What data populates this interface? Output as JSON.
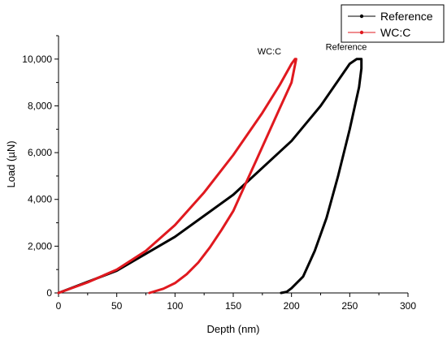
{
  "chart_data": {
    "type": "line",
    "xlabel": "Depth (nm)",
    "ylabel": "Load (µN)",
    "xlim": [
      0,
      300
    ],
    "ylim": [
      0,
      11000
    ],
    "xticks": [
      0,
      50,
      100,
      150,
      200,
      250,
      300
    ],
    "xtick_labels": [
      "0",
      "50",
      "100",
      "150",
      "200",
      "250",
      "300"
    ],
    "yticks": [
      0,
      2000,
      4000,
      6000,
      8000,
      10000
    ],
    "ytick_labels": [
      "0",
      "2,000",
      "4,000",
      "6,000",
      "8,000",
      "10,000"
    ],
    "grid": false,
    "legend_position": "top-right",
    "series": [
      {
        "name": "Reference",
        "color": "#000000",
        "x": [
          0,
          50,
          100,
          150,
          200,
          225,
          250,
          256,
          260,
          260,
          258,
          250,
          240,
          230,
          220,
          210,
          200,
          196,
          191
        ],
        "y": [
          0,
          950,
          2400,
          4200,
          6500,
          8000,
          9800,
          10000,
          10000,
          9600,
          8800,
          7000,
          5000,
          3200,
          1800,
          700,
          200,
          50,
          0
        ]
      },
      {
        "name": "WC:C",
        "color": "#e0191f",
        "x": [
          0,
          25,
          50,
          75,
          100,
          125,
          150,
          175,
          190,
          200,
          203,
          204,
          200,
          190,
          180,
          170,
          160,
          150,
          140,
          130,
          120,
          110,
          100,
          90,
          78
        ],
        "y": [
          0,
          450,
          1000,
          1800,
          2900,
          4300,
          5900,
          7700,
          8900,
          9800,
          10000,
          10000,
          9000,
          7900,
          6800,
          5700,
          4600,
          3500,
          2700,
          1950,
          1300,
          800,
          420,
          180,
          0
        ]
      }
    ],
    "annotations": [
      {
        "text": "WC:C",
        "x": 181,
        "y": 10200
      },
      {
        "text": "Reference",
        "x": 247,
        "y": 10400
      }
    ]
  }
}
